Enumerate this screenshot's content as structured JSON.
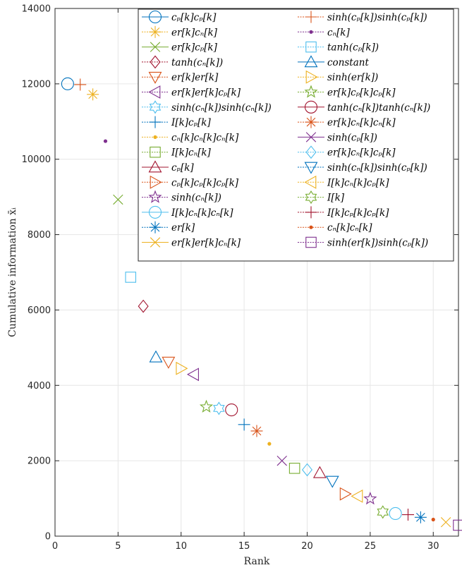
{
  "chart_data": {
    "type": "scatter",
    "xlabel": "Rank",
    "ylabel": "Cumulative information x̄ᵢ",
    "xlim": [
      0,
      32
    ],
    "ylim": [
      0,
      14000
    ],
    "xticks": [
      0,
      5,
      10,
      15,
      20,
      25,
      30
    ],
    "yticks": [
      0,
      2000,
      4000,
      6000,
      8000,
      10000,
      12000,
      14000
    ],
    "xtick_labels": [
      "0",
      "5",
      "10",
      "15",
      "20",
      "25",
      "30"
    ],
    "ytick_labels": [
      "0",
      "2000",
      "4000",
      "6000",
      "8000",
      "10000",
      "12000",
      "14000"
    ],
    "grid": true,
    "legend_placement": "top-right, two columns",
    "series": [
      {
        "name": "cₚ[k]cₚ[k]",
        "x": 1,
        "y": 12000,
        "marker": "circle",
        "color": "#0072BD"
      },
      {
        "name": "sinh(cₚ[k])sinh(cₚ[k])",
        "x": 2,
        "y": 11980,
        "marker": "plus",
        "color": "#D95319"
      },
      {
        "name": "er[k]cₙ[k]",
        "x": 3,
        "y": 11720,
        "marker": "asterisk",
        "color": "#EDB120"
      },
      {
        "name": "cₙ[k]",
        "x": 4,
        "y": 10480,
        "marker": "dot",
        "color": "#7E2F8E"
      },
      {
        "name": "er[k]cₚ[k]",
        "x": 5,
        "y": 8930,
        "marker": "x",
        "color": "#77AC30"
      },
      {
        "name": "tanh(cₚ[k])",
        "x": 6,
        "y": 6870,
        "marker": "square",
        "color": "#4DBEEE"
      },
      {
        "name": "tanh(cₙ[k])",
        "x": 7,
        "y": 6100,
        "marker": "diamond",
        "color": "#A2142F"
      },
      {
        "name": "constant",
        "x": 8,
        "y": 4750,
        "marker": "triangle-up",
        "color": "#0072BD"
      },
      {
        "name": "er[k]er[k]",
        "x": 9,
        "y": 4620,
        "marker": "triangle-down",
        "color": "#D95319"
      },
      {
        "name": "sinh(er[k])",
        "x": 10,
        "y": 4450,
        "marker": "triangle-right",
        "color": "#EDB120"
      },
      {
        "name": "er[k]er[k]cₚ[k]",
        "x": 11,
        "y": 4290,
        "marker": "triangle-left",
        "color": "#7E2F8E"
      },
      {
        "name": "er[k]cₚ[k]cₚ[k]",
        "x": 12,
        "y": 3430,
        "marker": "pentagram",
        "color": "#77AC30"
      },
      {
        "name": "sinh(cₙ[k])sinh(cₙ[k])",
        "x": 13,
        "y": 3390,
        "marker": "hexagram",
        "color": "#4DBEEE"
      },
      {
        "name": "tanh(cₙ[k])tanh(cₙ[k])",
        "x": 14,
        "y": 3350,
        "marker": "circle",
        "color": "#A2142F"
      },
      {
        "name": "I[k]cₚ[k]",
        "x": 15,
        "y": 2960,
        "marker": "plus",
        "color": "#0072BD"
      },
      {
        "name": "er[k]cₙ[k]cₙ[k]",
        "x": 16,
        "y": 2790,
        "marker": "asterisk",
        "color": "#D95319"
      },
      {
        "name": "cₙ[k]cₙ[k]cₙ[k]",
        "x": 17,
        "y": 2450,
        "marker": "dot",
        "color": "#EDB120"
      },
      {
        "name": "sinh(cₚ[k])",
        "x": 18,
        "y": 2000,
        "marker": "x",
        "color": "#7E2F8E"
      },
      {
        "name": "I[k]cₙ[k]",
        "x": 19,
        "y": 1800,
        "marker": "square",
        "color": "#77AC30"
      },
      {
        "name": "er[k]cₙ[k]cₚ[k]",
        "x": 20,
        "y": 1760,
        "marker": "diamond",
        "color": "#4DBEEE"
      },
      {
        "name": "cₚ[k]",
        "x": 21,
        "y": 1680,
        "marker": "triangle-up",
        "color": "#A2142F"
      },
      {
        "name": "sinh(cₙ[k])sinh(cₚ[k])",
        "x": 22,
        "y": 1460,
        "marker": "triangle-down",
        "color": "#0072BD"
      },
      {
        "name": "cₚ[k]cₚ[k]cₚ[k]",
        "x": 23,
        "y": 1120,
        "marker": "triangle-right",
        "color": "#D95319"
      },
      {
        "name": "I[k]cₙ[k]cₚ[k]",
        "x": 24,
        "y": 1060,
        "marker": "triangle-left",
        "color": "#EDB120"
      },
      {
        "name": "sinh(cₙ[k])",
        "x": 25,
        "y": 990,
        "marker": "pentagram",
        "color": "#7E2F8E"
      },
      {
        "name": "I[k]",
        "x": 26,
        "y": 640,
        "marker": "hexagram",
        "color": "#77AC30"
      },
      {
        "name": "I[k]cₙ[k]cₙ[k]",
        "x": 27,
        "y": 600,
        "marker": "circle",
        "color": "#4DBEEE"
      },
      {
        "name": "I[k]cₚ[k]cₚ[k]",
        "x": 28,
        "y": 570,
        "marker": "plus",
        "color": "#A2142F"
      },
      {
        "name": "er[k]",
        "x": 29,
        "y": 500,
        "marker": "asterisk",
        "color": "#0072BD"
      },
      {
        "name": "cₙ[k]cₙ[k]",
        "x": 30,
        "y": 440,
        "marker": "dot",
        "color": "#D95319"
      },
      {
        "name": "er[k]er[k]cₙ[k]",
        "x": 31,
        "y": 370,
        "marker": "x",
        "color": "#EDB120"
      },
      {
        "name": "sinh(er[k])sinh(cₚ[k])",
        "x": 32,
        "y": 290,
        "marker": "square",
        "color": "#7E2F8E"
      }
    ]
  }
}
